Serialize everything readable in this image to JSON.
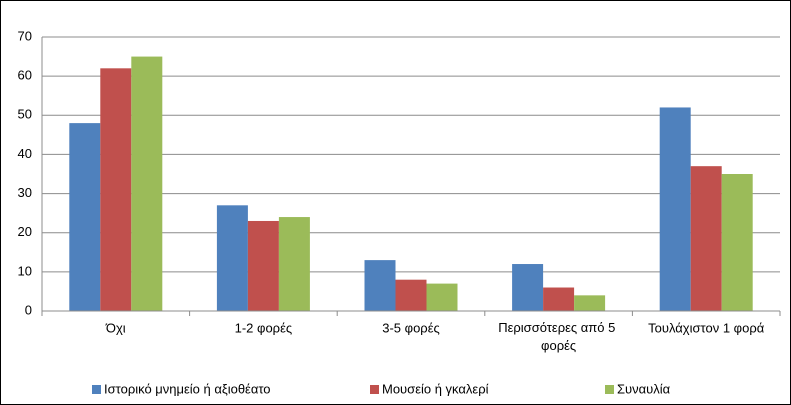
{
  "chart_data": {
    "type": "bar",
    "categories": [
      "Όχι",
      "1-2 φορές",
      "3-5 φορές",
      "Περισσότερες από 5 φορές",
      "Τουλάχιστον 1 φορά"
    ],
    "series": [
      {
        "name": "Ιστορικό μνημείο ή αξιοθέατο",
        "color": "#4f81bd",
        "values": [
          48,
          27,
          13,
          12,
          52
        ]
      },
      {
        "name": "Μουσείο ή γκαλερί",
        "color": "#c0504d",
        "values": [
          62,
          23,
          8,
          6,
          37
        ]
      },
      {
        "name": "Συναυλία",
        "color": "#9bbb59",
        "values": [
          65,
          24,
          7,
          4,
          35
        ]
      }
    ],
    "ylim": [
      0,
      70
    ],
    "yticks": [
      0,
      10,
      20,
      30,
      40,
      50,
      60,
      70
    ],
    "grid": true,
    "legend": "bottom"
  }
}
